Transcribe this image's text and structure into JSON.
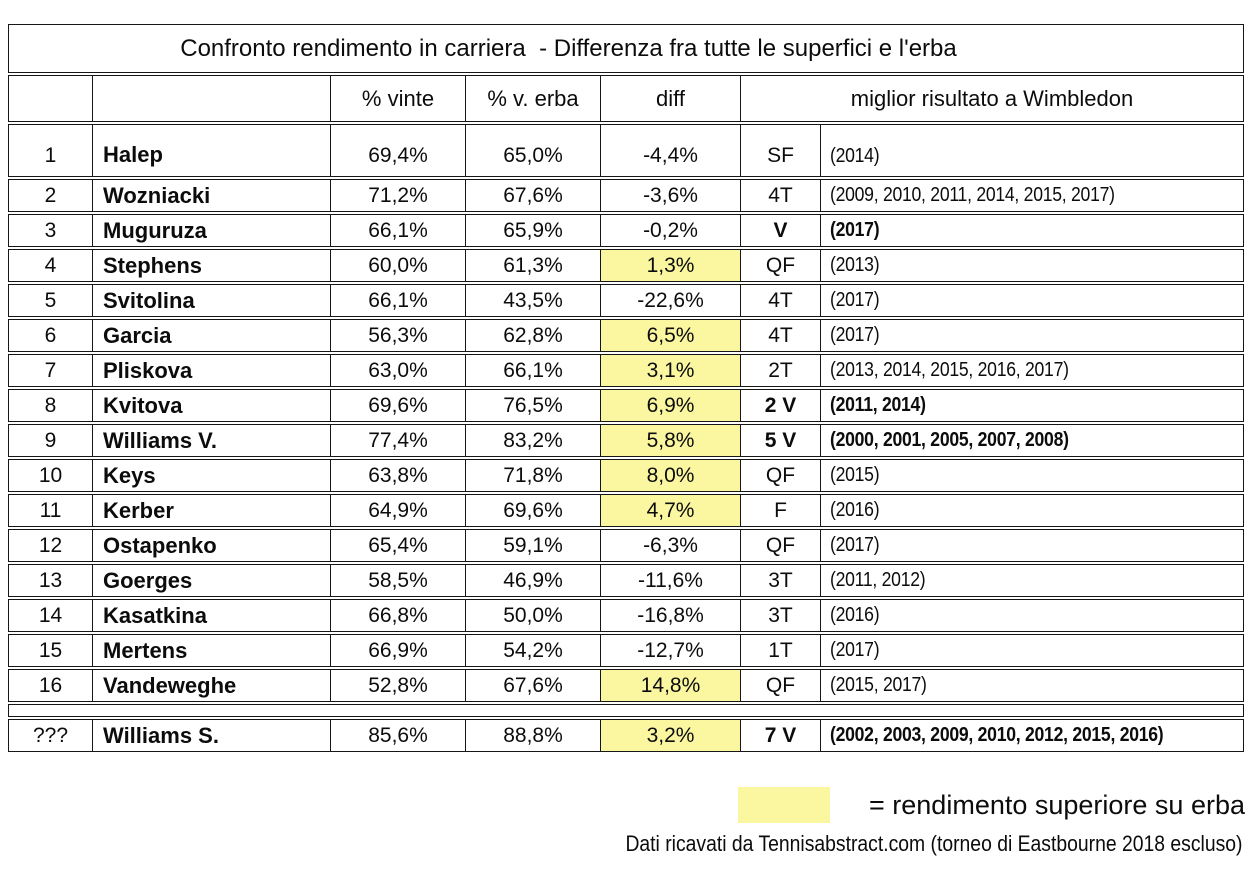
{
  "chart_data": {
    "type": "table",
    "title": "Confronto rendimento in carriera  - Differenza fra tutte le superfici e l'erba",
    "headers": {
      "rank": "",
      "player": "",
      "pct_won": "% vinte",
      "pct_grass": "% v. erba",
      "diff": "diff",
      "wimbledon": "miglior risultato a Wimbledon"
    },
    "rows": [
      {
        "rank": "1",
        "player": "Halep",
        "pct_won": "69,4%",
        "pct_grass": "65,0%",
        "diff": "-4,4%",
        "diff_highlight": false,
        "result": "SF",
        "years": "(2014)",
        "bold_result": false
      },
      {
        "rank": "2",
        "player": "Wozniacki",
        "pct_won": "71,2%",
        "pct_grass": "67,6%",
        "diff": "-3,6%",
        "diff_highlight": false,
        "result": "4T",
        "years": "(2009, 2010, 2011, 2014, 2015, 2017)",
        "bold_result": false
      },
      {
        "rank": "3",
        "player": "Muguruza",
        "pct_won": "66,1%",
        "pct_grass": "65,9%",
        "diff": "-0,2%",
        "diff_highlight": false,
        "result": "V",
        "years": "(2017)",
        "bold_result": true
      },
      {
        "rank": "4",
        "player": "Stephens",
        "pct_won": "60,0%",
        "pct_grass": "61,3%",
        "diff": "1,3%",
        "diff_highlight": true,
        "result": "QF",
        "years": "(2013)",
        "bold_result": false
      },
      {
        "rank": "5",
        "player": "Svitolina",
        "pct_won": "66,1%",
        "pct_grass": "43,5%",
        "diff": "-22,6%",
        "diff_highlight": false,
        "result": "4T",
        "years": "(2017)",
        "bold_result": false
      },
      {
        "rank": "6",
        "player": "Garcia",
        "pct_won": "56,3%",
        "pct_grass": "62,8%",
        "diff": "6,5%",
        "diff_highlight": true,
        "result": "4T",
        "years": "(2017)",
        "bold_result": false
      },
      {
        "rank": "7",
        "player": "Pliskova",
        "pct_won": "63,0%",
        "pct_grass": "66,1%",
        "diff": "3,1%",
        "diff_highlight": true,
        "result": "2T",
        "years": "(2013, 2014, 2015, 2016, 2017)",
        "bold_result": false
      },
      {
        "rank": "8",
        "player": "Kvitova",
        "pct_won": "69,6%",
        "pct_grass": "76,5%",
        "diff": "6,9%",
        "diff_highlight": true,
        "result": "2 V",
        "years": "(2011, 2014)",
        "bold_result": true
      },
      {
        "rank": "9",
        "player": "Williams V.",
        "pct_won": "77,4%",
        "pct_grass": "83,2%",
        "diff": "5,8%",
        "diff_highlight": true,
        "result": "5 V",
        "years": "(2000, 2001, 2005, 2007, 2008)",
        "bold_result": true
      },
      {
        "rank": "10",
        "player": "Keys",
        "pct_won": "63,8%",
        "pct_grass": "71,8%",
        "diff": "8,0%",
        "diff_highlight": true,
        "result": "QF",
        "years": "(2015)",
        "bold_result": false
      },
      {
        "rank": "11",
        "player": "Kerber",
        "pct_won": "64,9%",
        "pct_grass": "69,6%",
        "diff": "4,7%",
        "diff_highlight": true,
        "result": "F",
        "years": "(2016)",
        "bold_result": false
      },
      {
        "rank": "12",
        "player": "Ostapenko",
        "pct_won": "65,4%",
        "pct_grass": "59,1%",
        "diff": "-6,3%",
        "diff_highlight": false,
        "result": "QF",
        "years": "(2017)",
        "bold_result": false
      },
      {
        "rank": "13",
        "player": "Goerges",
        "pct_won": "58,5%",
        "pct_grass": "46,9%",
        "diff": "-11,6%",
        "diff_highlight": false,
        "result": "3T",
        "years": "(2011, 2012)",
        "bold_result": false
      },
      {
        "rank": "14",
        "player": "Kasatkina",
        "pct_won": "66,8%",
        "pct_grass": "50,0%",
        "diff": "-16,8%",
        "diff_highlight": false,
        "result": "3T",
        "years": "(2016)",
        "bold_result": false
      },
      {
        "rank": "15",
        "player": "Mertens",
        "pct_won": "66,9%",
        "pct_grass": "54,2%",
        "diff": "-12,7%",
        "diff_highlight": false,
        "result": "1T",
        "years": "(2017)",
        "bold_result": false
      },
      {
        "rank": "16",
        "player": "Vandeweghe",
        "pct_won": "52,8%",
        "pct_grass": "67,6%",
        "diff": "14,8%",
        "diff_highlight": true,
        "result": "QF",
        "years": "(2015, 2017)",
        "bold_result": false
      }
    ],
    "extra_row": {
      "rank": "???",
      "player": "Williams S.",
      "pct_won": "85,6%",
      "pct_grass": "88,8%",
      "diff": "3,2%",
      "diff_highlight": true,
      "result": "7 V",
      "years": "(2002, 2003, 2009, 2010, 2012, 2015, 2016)",
      "bold_result": true
    },
    "legend": {
      "label": "= rendimento superiore su erba"
    },
    "footnote": "Dati ricavati da Tennisabstract.com (torneo di Eastbourne 2018 escluso)"
  },
  "colors": {
    "highlight": "#faf7a0",
    "border": "#161616"
  }
}
